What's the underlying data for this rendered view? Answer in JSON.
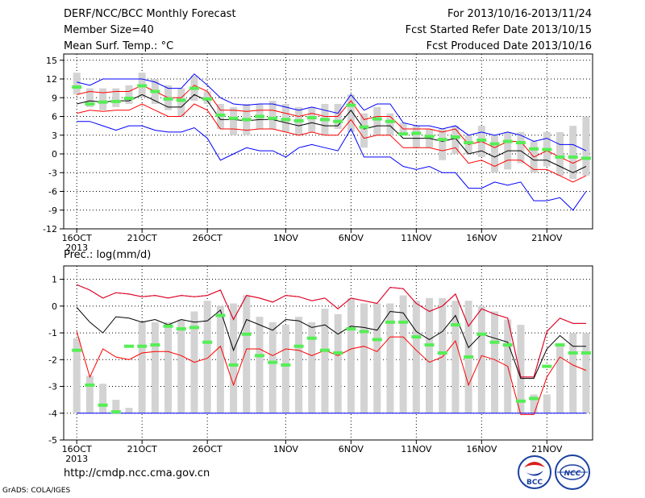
{
  "header": {
    "title": "DERF/NCC/BCC Monthly Forecast",
    "member_size": "Member Size=40",
    "variable": "Mean Surf. Temp.: °C",
    "forecast_period": "For 2013/10/16-2013/11/24",
    "started_refer": "Fcst Started Refer Date 2013/10/15",
    "produced": "Fcst Produced Date 2013/10/16"
  },
  "precip_label": "Prec.: log(mm/d)",
  "footer": {
    "url": "http://cmdp.ncc.cma.gov.cn",
    "grads": "GrADS: COLA/IGES"
  },
  "logos": {
    "bcc": "BCC",
    "ncc": "NCC"
  },
  "colors": {
    "box": "#d3d3d3",
    "median": "#55ee55",
    "mean_line": "#000000",
    "spread_line": "#ff0000",
    "extreme_line": "#0000ff",
    "grid": "#000000"
  },
  "chart_data": [
    {
      "type": "box-and-line",
      "days": 40,
      "x_tick_labels": [
        "16OCT",
        "21OCT",
        "26OCT",
        "1NOV",
        "6NOV",
        "11NOV",
        "16NOV",
        "21NOV"
      ],
      "x_tick_days": [
        1,
        6,
        11,
        17,
        22,
        27,
        32,
        37
      ],
      "x_year_label": "2013",
      "ylim": [
        -12,
        16
      ],
      "yticks": [
        -12,
        -9,
        -6,
        -3,
        0,
        3,
        6,
        9,
        12,
        15
      ],
      "grid": true,
      "box_low": [
        9.5,
        7.5,
        7,
        7.5,
        8,
        9,
        8,
        7,
        6,
        8.5,
        8,
        4,
        3,
        3,
        4,
        4,
        3.5,
        3,
        3.5,
        3,
        4,
        3.5,
        1,
        3,
        3,
        3,
        1,
        1,
        -1,
        0,
        0,
        -0.5,
        -3,
        -2.5,
        -1.5,
        -3,
        -2,
        -3.5,
        -4,
        -3.5
      ],
      "box_high": [
        13,
        10.5,
        10.5,
        10.5,
        11,
        13,
        12,
        11,
        10.5,
        12.5,
        10,
        8,
        7.5,
        8,
        8,
        8.5,
        8,
        7.5,
        7.5,
        8,
        8,
        9.5,
        6.5,
        7.5,
        6.5,
        5,
        4.5,
        4,
        4,
        4.5,
        3,
        4.5,
        3,
        3.5,
        3.5,
        2,
        3.5,
        3.5,
        4.5,
        6
      ],
      "median": [
        10.7,
        8,
        8.3,
        8.4,
        8.9,
        10.9,
        10,
        8.8,
        8.6,
        10.5,
        8.8,
        6.2,
        5.7,
        5.5,
        6,
        5.7,
        5.5,
        5.3,
        5.8,
        5.5,
        5.2,
        7.8,
        4.3,
        5.6,
        5.2,
        3.2,
        3.3,
        2.8,
        2.3,
        2.7,
        1.8,
        2.2,
        1.6,
        2,
        1.8,
        0.8,
        0.7,
        -0.5,
        -0.5,
        -0.7
      ],
      "mean": [
        8,
        8.5,
        8.3,
        8.5,
        8.5,
        9.5,
        8.5,
        7.5,
        7.5,
        9.5,
        8.5,
        5.5,
        5.5,
        5.3,
        5.5,
        5.5,
        5,
        4.5,
        5,
        4.5,
        4.5,
        7,
        4,
        4.5,
        4.5,
        2.5,
        2.5,
        2.5,
        2,
        2.5,
        0,
        0.5,
        -0.5,
        0.5,
        0.5,
        -1,
        -1,
        -2,
        -3,
        -2
      ],
      "upper_sd": [
        9.5,
        10,
        9.8,
        10,
        10,
        11,
        10,
        9,
        9,
        11,
        10,
        7,
        7,
        6.8,
        7,
        7,
        6.5,
        6,
        6.5,
        6,
        6,
        8.5,
        5.5,
        6,
        6,
        4,
        4,
        4,
        3.5,
        4,
        1.5,
        2,
        1,
        2,
        2,
        -0.5,
        0.5,
        -0.5,
        -1.5,
        -0.5
      ],
      "lower_sd": [
        6.5,
        7,
        6.8,
        7,
        7,
        8,
        7,
        6,
        6,
        8,
        7,
        4,
        4,
        3.8,
        4,
        4,
        3.5,
        3,
        3.5,
        3,
        3,
        5.5,
        2.5,
        3,
        3,
        1,
        1,
        1,
        0.5,
        1,
        -1.5,
        -1,
        -2,
        -1,
        -1,
        -2.5,
        -2.5,
        -3.5,
        -4.5,
        -3.5
      ],
      "max": [
        11.5,
        11,
        12,
        12,
        12,
        12,
        11.5,
        10.5,
        10.5,
        12.8,
        11,
        9,
        8,
        7.8,
        8,
        8,
        7.5,
        7,
        7.5,
        7,
        6.5,
        9.5,
        7,
        8,
        8,
        5,
        4.5,
        4.5,
        4,
        4.5,
        3,
        3.5,
        3,
        3.5,
        3,
        2,
        2.5,
        1.5,
        1.5,
        0.5
      ],
      "min": [
        5.2,
        5.2,
        4.5,
        3.8,
        4.5,
        4.5,
        3.8,
        3.5,
        3.5,
        4.2,
        2.5,
        -1,
        0,
        1,
        0.5,
        0.5,
        -0.5,
        1,
        1.5,
        1,
        0.5,
        4,
        -0.5,
        -0.5,
        -0.5,
        -2,
        -2.5,
        -2,
        -3,
        -3,
        -5.5,
        -5.5,
        -4.5,
        -5,
        -4.5,
        -7.5,
        -7.5,
        -7,
        -9,
        -6
      ]
    },
    {
      "type": "box-and-line",
      "days": 40,
      "x_tick_labels": [
        "16OCT",
        "21OCT",
        "26OCT",
        "1NOV",
        "6NOV",
        "11NOV",
        "16NOV",
        "21NOV"
      ],
      "x_tick_days": [
        1,
        6,
        11,
        17,
        22,
        27,
        32,
        37
      ],
      "x_year_label": "2013",
      "ylim": [
        -5,
        1.5
      ],
      "yticks": [
        -5,
        -4,
        -3,
        -2,
        -1,
        0,
        1
      ],
      "grid": true,
      "box_low": [
        -4,
        -4,
        -4,
        -4,
        -4,
        -4,
        -4,
        -4,
        -4,
        -4,
        -4,
        -4,
        -4,
        -4,
        -4,
        -4,
        -4,
        -4,
        -4,
        -4,
        -4,
        -4,
        -4,
        -4,
        -4,
        -4,
        -4,
        -4,
        -4,
        -4,
        -4,
        -4,
        -4,
        -4,
        -4,
        -4,
        -4,
        -4,
        -4,
        -4
      ],
      "box_high": [
        -1.2,
        -2.6,
        -2.9,
        -3.5,
        -3.8,
        -0.6,
        -0.6,
        -0.6,
        -0.5,
        -0.2,
        0.2,
        0,
        0.1,
        0.4,
        -0.4,
        -0.6,
        -0.7,
        -0.4,
        -0.6,
        -0.1,
        -0.3,
        0.3,
        0.1,
        0.1,
        0.1,
        0.4,
        0.2,
        0.3,
        0.3,
        0.2,
        0.2,
        0,
        -0.2,
        -0.5,
        -0.7,
        -3.3,
        -3.3,
        -1.5,
        -1,
        -1
      ],
      "median": [
        -1.65,
        -2.95,
        -3.7,
        -3.95,
        -1.5,
        -1.5,
        -1.45,
        -0.75,
        -0.85,
        -0.8,
        -1.35,
        -0.35,
        -2.2,
        -1.05,
        -1.85,
        -2.1,
        -2.2,
        -1.5,
        -1.2,
        -1.65,
        -1.75,
        -0.85,
        -0.95,
        -1.25,
        -0.6,
        -0.6,
        -1.15,
        -1.45,
        -1.75,
        -0.7,
        -1.9,
        -1.05,
        -1.35,
        -1.45,
        -3.55,
        -3.45,
        -2.25,
        -1.45,
        -1.75,
        -1.75
      ],
      "mean": [
        -0.05,
        -0.6,
        -1,
        -0.4,
        -0.45,
        -0.6,
        -0.5,
        -0.7,
        -0.5,
        -0.6,
        -0.55,
        -0.15,
        -1.65,
        -0.5,
        -0.7,
        -0.9,
        -0.5,
        -0.55,
        -0.8,
        -0.7,
        -1.05,
        -0.75,
        -0.8,
        -0.9,
        -0.2,
        -0.25,
        -0.95,
        -1.25,
        -0.95,
        -0.35,
        -1.55,
        -1.05,
        -1.2,
        -1.35,
        -2.7,
        -2.7,
        -1.6,
        -1.1,
        -1.5,
        -1.5
      ],
      "upper_sd": [
        0.8,
        0.6,
        0.3,
        0.5,
        0.45,
        0.35,
        0.4,
        0.3,
        0.4,
        0.35,
        0.4,
        0.6,
        -0.5,
        0.4,
        0.3,
        0.15,
        0.4,
        0.35,
        0.2,
        0.3,
        -0.1,
        0.3,
        0.2,
        0.1,
        0.7,
        0.65,
        0.1,
        -0.2,
        0,
        0.45,
        -0.75,
        -0.1,
        -0.3,
        -0.45,
        -2.65,
        -2.65,
        -0.95,
        -0.45,
        -0.65,
        -0.65
      ],
      "lower_sd": [
        -0.95,
        -2.65,
        -1.6,
        -1.9,
        -2,
        -1.75,
        -1.7,
        -1.7,
        -1.85,
        -2.1,
        -1.95,
        -1.5,
        -2.95,
        -1.6,
        -1.6,
        -1.85,
        -1.6,
        -1.65,
        -1.85,
        -1.65,
        -1.85,
        -1.6,
        -1.5,
        -1.7,
        -1.15,
        -1.15,
        -1.65,
        -2.1,
        -1.9,
        -1.3,
        -2.95,
        -1.85,
        -2,
        -2.25,
        -4.05,
        -4.05,
        -2.65,
        -1.9,
        -2.2,
        -2.4
      ],
      "max": [
        0.8,
        0.6,
        0.3,
        0.5,
        0.45,
        0.35,
        0.4,
        0.3,
        0.4,
        0.35,
        0.4,
        0.6,
        -0.5,
        0.4,
        0.3,
        0.15,
        0.4,
        0.35,
        0.2,
        0.3,
        -0.1,
        0.3,
        0.2,
        0.1,
        0.7,
        0.65,
        0.1,
        -0.2,
        0,
        0.45,
        -0.75,
        -0.1,
        -0.3,
        -0.45,
        -2.65,
        -2.65,
        -0.95,
        -0.45,
        -0.65,
        -0.65
      ],
      "min": [
        -4,
        -4,
        -4,
        -4,
        -4,
        -4,
        -4,
        -4,
        -4,
        -4,
        -4,
        -4,
        -4,
        -4,
        -4,
        -4,
        -4,
        -4,
        -4,
        -4,
        -4,
        -4,
        -4,
        -4,
        -4,
        -4,
        -4,
        -4,
        -4,
        -4,
        -4,
        -4,
        -4,
        -4,
        -4,
        -4,
        -4,
        -4,
        -4,
        -4
      ]
    }
  ]
}
